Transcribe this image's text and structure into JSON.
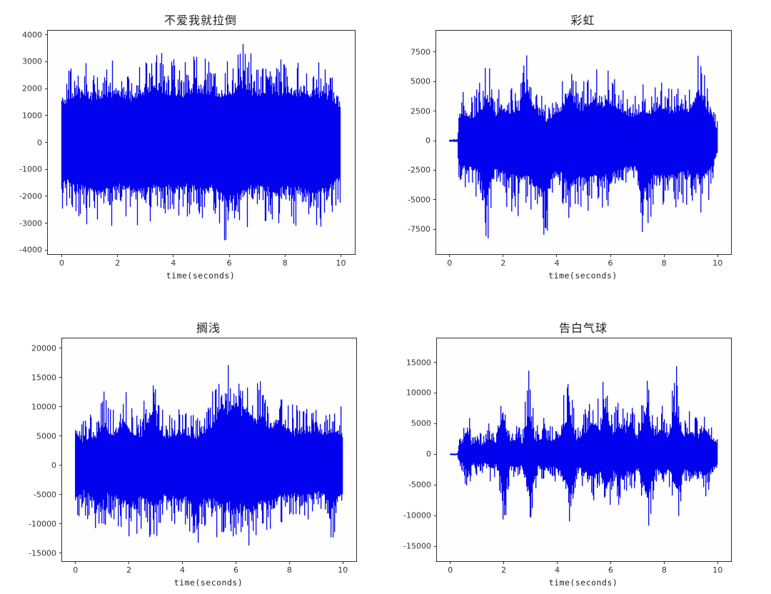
{
  "figure": {
    "background_color": "#ffffff",
    "waveform_color": "#0202ee",
    "axis_color": "#2f2f2f",
    "layout": "2x2 grid of audio waveform subplots"
  },
  "chart_data": [
    {
      "type": "area",
      "kind": "audio-waveform",
      "title": "不爱我就拉倒",
      "xlabel": "time(seconds)",
      "ylabel": "",
      "xticks": [
        0,
        2,
        4,
        6,
        8,
        10
      ],
      "yticks": [
        4000,
        3000,
        2000,
        1000,
        0,
        -1000,
        -2000,
        -3000,
        -4000
      ],
      "xlim": [
        -0.5,
        10.5
      ],
      "ylim": [
        -4150,
        4150
      ],
      "duration_seconds": 10,
      "core_fraction": 0.55,
      "seed": 101,
      "upper_envelope": [
        [
          0,
          2600
        ],
        [
          0.3,
          3000
        ],
        [
          0.8,
          3200
        ],
        [
          1.2,
          2800
        ],
        [
          1.6,
          3100
        ],
        [
          2.0,
          3300
        ],
        [
          2.4,
          2900
        ],
        [
          2.8,
          3100
        ],
        [
          3.3,
          3800
        ],
        [
          3.7,
          3300
        ],
        [
          4.2,
          3100
        ],
        [
          4.6,
          3300
        ],
        [
          5.0,
          3400
        ],
        [
          5.4,
          3200
        ],
        [
          5.8,
          3000
        ],
        [
          6.2,
          3200
        ],
        [
          6.5,
          3900
        ],
        [
          6.9,
          3200
        ],
        [
          7.4,
          3400
        ],
        [
          7.8,
          3100
        ],
        [
          8.2,
          3350
        ],
        [
          8.6,
          3200
        ],
        [
          9.0,
          3100
        ],
        [
          9.4,
          3250
        ],
        [
          9.8,
          2600
        ],
        [
          10,
          2200
        ]
      ],
      "lower_envelope": [
        [
          0,
          -2500
        ],
        [
          0.4,
          -2800
        ],
        [
          0.9,
          -3000
        ],
        [
          1.4,
          -3300
        ],
        [
          1.9,
          -2900
        ],
        [
          2.4,
          -3050
        ],
        [
          2.9,
          -3200
        ],
        [
          3.4,
          -2900
        ],
        [
          3.9,
          -3000
        ],
        [
          4.4,
          -2850
        ],
        [
          4.9,
          -3100
        ],
        [
          5.4,
          -2950
        ],
        [
          5.9,
          -3800
        ],
        [
          6.3,
          -3400
        ],
        [
          6.8,
          -3000
        ],
        [
          7.3,
          -3100
        ],
        [
          7.7,
          -3200
        ],
        [
          8.2,
          -3000
        ],
        [
          8.7,
          -3150
        ],
        [
          9.1,
          -3400
        ],
        [
          9.5,
          -2900
        ],
        [
          9.8,
          -2500
        ],
        [
          10,
          -2100
        ]
      ]
    },
    {
      "type": "area",
      "kind": "audio-waveform",
      "title": "彩虹",
      "xlabel": "time(seconds)",
      "ylabel": "",
      "xticks": [
        0,
        2,
        4,
        6,
        8,
        10
      ],
      "yticks": [
        7500,
        5000,
        2500,
        0,
        -2500,
        -5000,
        -7500
      ],
      "xlim": [
        -0.5,
        10.5
      ],
      "ylim": [
        -9600,
        9300
      ],
      "duration_seconds": 10,
      "core_fraction": 0.5,
      "seed": 202,
      "upper_envelope": [
        [
          0,
          150
        ],
        [
          0.3,
          150
        ],
        [
          0.35,
          3500
        ],
        [
          0.6,
          4200
        ],
        [
          0.9,
          3800
        ],
        [
          1.2,
          5200
        ],
        [
          1.4,
          6900
        ],
        [
          1.7,
          4300
        ],
        [
          2.0,
          5100
        ],
        [
          2.3,
          4600
        ],
        [
          2.6,
          5000
        ],
        [
          2.9,
          8500
        ],
        [
          3.1,
          5400
        ],
        [
          3.4,
          4200
        ],
        [
          3.6,
          3100
        ],
        [
          3.9,
          4400
        ],
        [
          4.2,
          5000
        ],
        [
          4.5,
          7800
        ],
        [
          4.8,
          5100
        ],
        [
          5.1,
          5400
        ],
        [
          5.4,
          6800
        ],
        [
          5.7,
          5400
        ],
        [
          6.0,
          6500
        ],
        [
          6.3,
          5000
        ],
        [
          6.6,
          4300
        ],
        [
          6.9,
          3900
        ],
        [
          7.2,
          5100
        ],
        [
          7.5,
          4500
        ],
        [
          7.8,
          5400
        ],
        [
          8.1,
          5000
        ],
        [
          8.4,
          4700
        ],
        [
          8.7,
          5200
        ],
        [
          9.0,
          5000
        ],
        [
          9.3,
          8400
        ],
        [
          9.6,
          5000
        ],
        [
          9.8,
          4200
        ],
        [
          10,
          1500
        ]
      ],
      "lower_envelope": [
        [
          0,
          -150
        ],
        [
          0.3,
          -150
        ],
        [
          0.35,
          -3800
        ],
        [
          0.6,
          -4500
        ],
        [
          0.9,
          -4200
        ],
        [
          1.2,
          -6200
        ],
        [
          1.4,
          -8800
        ],
        [
          1.7,
          -4800
        ],
        [
          2.0,
          -5400
        ],
        [
          2.3,
          -5800
        ],
        [
          2.6,
          -6400
        ],
        [
          2.9,
          -5600
        ],
        [
          3.2,
          -7400
        ],
        [
          3.6,
          -8800
        ],
        [
          3.9,
          -5200
        ],
        [
          4.2,
          -5600
        ],
        [
          4.5,
          -7800
        ],
        [
          4.8,
          -5600
        ],
        [
          5.1,
          -6800
        ],
        [
          5.4,
          -5600
        ],
        [
          5.7,
          -6200
        ],
        [
          6.0,
          -5800
        ],
        [
          6.3,
          -5200
        ],
        [
          6.6,
          -4400
        ],
        [
          6.9,
          -4200
        ],
        [
          7.3,
          -8700
        ],
        [
          7.6,
          -5400
        ],
        [
          7.9,
          -5800
        ],
        [
          8.2,
          -6200
        ],
        [
          8.5,
          -5600
        ],
        [
          8.8,
          -5200
        ],
        [
          9.1,
          -5600
        ],
        [
          9.4,
          -6000
        ],
        [
          9.7,
          -4800
        ],
        [
          10,
          -1800
        ]
      ]
    },
    {
      "type": "area",
      "kind": "audio-waveform",
      "title": "搁浅",
      "xlabel": "time(seconds)",
      "ylabel": "",
      "xticks": [
        0,
        2,
        4,
        6,
        8,
        10
      ],
      "yticks": [
        20000,
        15000,
        10000,
        5000,
        0,
        -5000,
        -10000,
        -15000
      ],
      "xlim": [
        -0.5,
        10.5
      ],
      "ylim": [
        -16350,
        21700
      ],
      "duration_seconds": 10,
      "core_fraction": 0.52,
      "seed": 303,
      "upper_envelope": [
        [
          0,
          10700
        ],
        [
          0.2,
          7800
        ],
        [
          0.5,
          8500
        ],
        [
          0.8,
          9500
        ],
        [
          1.0,
          12800
        ],
        [
          1.3,
          9800
        ],
        [
          1.6,
          11000
        ],
        [
          1.9,
          13000
        ],
        [
          2.2,
          10200
        ],
        [
          2.5,
          9200
        ],
        [
          2.8,
          15800
        ],
        [
          3.1,
          11500
        ],
        [
          3.4,
          8800
        ],
        [
          3.7,
          9800
        ],
        [
          4.0,
          10500
        ],
        [
          4.3,
          8800
        ],
        [
          4.6,
          9200
        ],
        [
          4.9,
          11500
        ],
        [
          5.2,
          14000
        ],
        [
          5.5,
          19800
        ],
        [
          5.7,
          17500
        ],
        [
          6.0,
          19500
        ],
        [
          6.2,
          16500
        ],
        [
          6.4,
          18200
        ],
        [
          6.7,
          14000
        ],
        [
          7.0,
          15300
        ],
        [
          7.3,
          11500
        ],
        [
          7.6,
          14500
        ],
        [
          7.9,
          12000
        ],
        [
          8.2,
          10000
        ],
        [
          8.5,
          11200
        ],
        [
          8.8,
          10300
        ],
        [
          9.1,
          11000
        ],
        [
          9.4,
          10200
        ],
        [
          9.7,
          11800
        ],
        [
          10,
          9200
        ]
      ],
      "lower_envelope": [
        [
          0,
          -9800
        ],
        [
          0.3,
          -8000
        ],
        [
          0.6,
          -10500
        ],
        [
          0.9,
          -12800
        ],
        [
          1.2,
          -9500
        ],
        [
          1.5,
          -10200
        ],
        [
          1.8,
          -11500
        ],
        [
          2.1,
          -13200
        ],
        [
          2.4,
          -10500
        ],
        [
          2.7,
          -11200
        ],
        [
          3.0,
          -13500
        ],
        [
          3.3,
          -9800
        ],
        [
          3.6,
          -10200
        ],
        [
          3.9,
          -11000
        ],
        [
          4.2,
          -10500
        ],
        [
          4.5,
          -15300
        ],
        [
          4.8,
          -11500
        ],
        [
          5.1,
          -11000
        ],
        [
          5.4,
          -12200
        ],
        [
          5.7,
          -11500
        ],
        [
          6.0,
          -13500
        ],
        [
          6.3,
          -12500
        ],
        [
          6.6,
          -14800
        ],
        [
          6.9,
          -12000
        ],
        [
          7.2,
          -11200
        ],
        [
          7.5,
          -10500
        ],
        [
          7.8,
          -9800
        ],
        [
          8.1,
          -9200
        ],
        [
          8.4,
          -10000
        ],
        [
          8.7,
          -9500
        ],
        [
          9.0,
          -8800
        ],
        [
          9.3,
          -9200
        ],
        [
          9.6,
          -13800
        ],
        [
          9.8,
          -10500
        ],
        [
          10,
          -8200
        ]
      ]
    },
    {
      "type": "area",
      "kind": "audio-waveform",
      "title": "告白气球",
      "xlabel": "time(seconds)",
      "ylabel": "",
      "xticks": [
        0,
        2,
        4,
        6,
        8,
        10
      ],
      "yticks": [
        15000,
        10000,
        5000,
        0,
        -5000,
        -10000,
        -15000
      ],
      "xlim": [
        -0.5,
        10.5
      ],
      "ylim": [
        -17400,
        18900
      ],
      "duration_seconds": 10,
      "core_fraction": 0.45,
      "seed": 404,
      "upper_envelope": [
        [
          0,
          200
        ],
        [
          0.28,
          200
        ],
        [
          0.32,
          2500
        ],
        [
          0.5,
          4500
        ],
        [
          0.65,
          9200
        ],
        [
          0.8,
          3500
        ],
        [
          1.0,
          4200
        ],
        [
          1.2,
          3000
        ],
        [
          1.5,
          5500
        ],
        [
          1.7,
          4000
        ],
        [
          1.95,
          13800
        ],
        [
          2.2,
          4500
        ],
        [
          2.5,
          5200
        ],
        [
          2.7,
          4000
        ],
        [
          2.95,
          14500
        ],
        [
          3.2,
          4200
        ],
        [
          3.5,
          6000
        ],
        [
          3.8,
          4500
        ],
        [
          4.1,
          6500
        ],
        [
          4.45,
          14200
        ],
        [
          4.7,
          5000
        ],
        [
          5.0,
          7000
        ],
        [
          5.35,
          11200
        ],
        [
          5.6,
          8000
        ],
        [
          5.8,
          17200
        ],
        [
          6.05,
          6500
        ],
        [
          6.3,
          10000
        ],
        [
          6.55,
          7000
        ],
        [
          6.75,
          10500
        ],
        [
          7.0,
          5500
        ],
        [
          7.35,
          14800
        ],
        [
          7.6,
          6000
        ],
        [
          7.9,
          8500
        ],
        [
          8.15,
          6000
        ],
        [
          8.45,
          15800
        ],
        [
          8.7,
          6500
        ],
        [
          9.0,
          7500
        ],
        [
          9.3,
          6000
        ],
        [
          9.5,
          9500
        ],
        [
          9.75,
          5500
        ],
        [
          10,
          4200
        ]
      ],
      "lower_envelope": [
        [
          0,
          -200
        ],
        [
          0.28,
          -200
        ],
        [
          0.32,
          -2000
        ],
        [
          0.5,
          -3500
        ],
        [
          0.65,
          -6500
        ],
        [
          0.85,
          -3000
        ],
        [
          1.05,
          -3800
        ],
        [
          1.3,
          -2800
        ],
        [
          1.5,
          -4500
        ],
        [
          1.75,
          -3500
        ],
        [
          2.0,
          -12800
        ],
        [
          2.25,
          -4000
        ],
        [
          2.5,
          -4500
        ],
        [
          2.75,
          -3800
        ],
        [
          3.0,
          -15500
        ],
        [
          3.25,
          -4000
        ],
        [
          3.5,
          -5000
        ],
        [
          3.8,
          -4200
        ],
        [
          4.1,
          -5500
        ],
        [
          4.5,
          -13800
        ],
        [
          4.75,
          -4500
        ],
        [
          5.0,
          -5500
        ],
        [
          5.35,
          -8000
        ],
        [
          5.6,
          -6000
        ],
        [
          5.85,
          -12000
        ],
        [
          6.1,
          -5500
        ],
        [
          6.3,
          -8500
        ],
        [
          6.6,
          -6000
        ],
        [
          6.8,
          -7000
        ],
        [
          7.05,
          -5000
        ],
        [
          7.4,
          -15200
        ],
        [
          7.65,
          -5000
        ],
        [
          7.9,
          -6000
        ],
        [
          8.2,
          -5200
        ],
        [
          8.5,
          -13200
        ],
        [
          8.75,
          -5500
        ],
        [
          9.0,
          -6500
        ],
        [
          9.3,
          -5500
        ],
        [
          9.55,
          -7500
        ],
        [
          9.8,
          -4800
        ],
        [
          10,
          -3800
        ]
      ]
    }
  ]
}
